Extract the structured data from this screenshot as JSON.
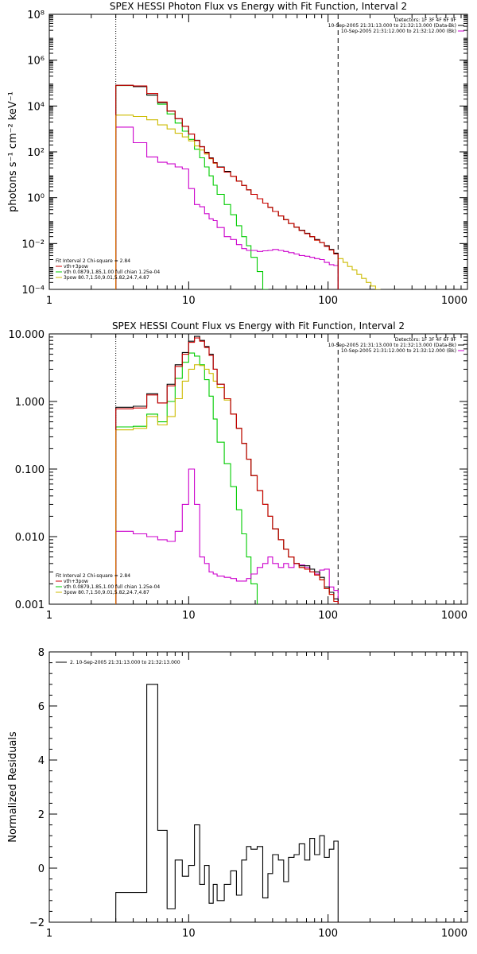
{
  "chart_data": [
    {
      "type": "line",
      "step": true,
      "title": "SPEX HESSI Photon Flux vs Energy with Fit Function, Interval 2",
      "ylabel": "photons s⁻¹ cm⁻² keV⁻¹",
      "xlabel": "",
      "xscale": "log",
      "yscale": "log",
      "xlim": [
        1,
        1000
      ],
      "ylim": [
        0.0001,
        100000000
      ],
      "xticks": [
        1,
        10,
        100,
        1000
      ],
      "xtick_labels": [
        "1",
        "10",
        "100",
        "1000"
      ],
      "yticks": [
        0.0001,
        0.01,
        1,
        100,
        10000,
        1000000,
        100000000
      ],
      "ytick_labels": [
        "10⁻⁴",
        "10⁻²",
        "10⁰",
        "10²",
        "10⁴",
        "10⁶",
        "10⁸"
      ],
      "vlines": [
        {
          "x": 3,
          "style": "dotted"
        },
        {
          "x": 118,
          "style": "dashed"
        }
      ],
      "header_lines": [
        "Detectors: 1F 3F 4F 6F 9F",
        "10-Sep-2005 21:31:13.000 to 21:32:13.000 (Data-Bk)",
        "10-Sep-2005 21:31:12.000 to 21:32:12.000 (Bk)"
      ],
      "legend": [
        "Fit Interval 2   Chi-square = 2.84",
        "vth+3pow",
        "vth 0.0879,1.85,1.00  full chian 1.25e-04",
        "3pow 80.7,1.50,9.01,5.82,24.7,4.87"
      ],
      "edges": [
        3,
        4,
        5,
        6,
        7,
        8,
        9,
        10,
        11,
        12,
        13,
        14,
        15,
        16,
        18,
        20,
        22,
        24,
        26,
        28,
        31,
        34,
        37,
        40,
        44,
        48,
        52,
        57,
        62,
        68,
        74,
        80,
        87,
        94,
        102,
        110,
        118,
        128,
        138,
        149,
        161,
        174,
        188,
        203,
        219,
        236,
        254
      ],
      "series": [
        {
          "name": "Data-Bk",
          "color": "#000000",
          "values": [
            80000,
            70000,
            30000,
            14000,
            6000,
            2800,
            1300,
            600,
            320,
            170,
            95,
            55,
            34,
            22,
            14,
            8.5,
            5.3,
            3.4,
            2.2,
            1.4,
            0.9,
            0.58,
            0.38,
            0.25,
            0.16,
            0.11,
            0.075,
            0.052,
            0.038,
            0.028,
            0.02,
            0.015,
            0.011,
            0.008,
            0.0055,
            0.0038
          ]
        },
        {
          "name": "Bk",
          "color": "#cc00cc",
          "values": [
            1200,
            250,
            60,
            35,
            30,
            22,
            18,
            2.5,
            0.5,
            0.4,
            0.2,
            0.12,
            0.1,
            0.05,
            0.02,
            0.015,
            0.009,
            0.006,
            0.005,
            0.005,
            0.0045,
            0.0048,
            0.005,
            0.0055,
            0.005,
            0.0045,
            0.004,
            0.0035,
            0.003,
            0.0028,
            0.0025,
            0.0022,
            0.002,
            0.0015,
            0.0012,
            0.0011
          ]
        },
        {
          "name": "vth+3pow",
          "color": "#cc0000",
          "values": [
            80000,
            75000,
            35000,
            15000,
            6000,
            2800,
            1300,
            600,
            310,
            165,
            90,
            52,
            33,
            21,
            13,
            8.5,
            5.2,
            3.4,
            2.2,
            1.4,
            0.9,
            0.58,
            0.38,
            0.25,
            0.16,
            0.11,
            0.075,
            0.052,
            0.037,
            0.027,
            0.02,
            0.014,
            0.011,
            0.0075,
            0.0052,
            0.0035
          ]
        },
        {
          "name": "vth",
          "color": "#00cc00",
          "values": [
            78000,
            70000,
            30000,
            12000,
            4500,
            1800,
            800,
            350,
            130,
            55,
            22,
            9,
            3.5,
            1.4,
            0.5,
            0.18,
            0.06,
            0.02,
            0.008,
            0.0025,
            0.0006,
            0.0001
          ]
        },
        {
          "name": "3pow",
          "color": "#ccbb00",
          "values": [
            4000,
            3500,
            2500,
            1500,
            1000,
            650,
            450,
            300,
            180,
            120,
            80,
            50,
            32,
            21,
            13,
            8.5,
            5.3,
            3.4,
            2.2,
            1.4,
            0.9,
            0.58,
            0.38,
            0.25,
            0.16,
            0.11,
            0.075,
            0.052,
            0.037,
            0.027,
            0.02,
            0.014,
            0.011,
            0.0075,
            0.0052,
            0.0035,
            0.0022,
            0.0015,
            0.001,
            0.0007,
            0.00045,
            0.0003,
            0.0002,
            0.00014,
            0.0001,
            7e-05
          ]
        }
      ]
    },
    {
      "type": "line",
      "step": true,
      "title": "SPEX HESSI Count Flux vs Energy with Fit Function, Interval 2",
      "xlabel": "",
      "ylabel": "",
      "xscale": "log",
      "yscale": "log",
      "xlim": [
        1,
        1000
      ],
      "ylim": [
        0.001,
        10
      ],
      "xticks": [
        1,
        10,
        100,
        1000
      ],
      "xtick_labels": [
        "1",
        "10",
        "100",
        "1000"
      ],
      "yticks": [
        0.001,
        0.01,
        0.1,
        1,
        10
      ],
      "ytick_labels": [
        "0.001",
        "0.010",
        "0.100",
        "1.000",
        "10.000"
      ],
      "vlines": [
        {
          "x": 3,
          "style": "dotted"
        },
        {
          "x": 118,
          "style": "dashed"
        }
      ],
      "header_lines": [
        "Detectors: 1F 3F 4F 6F 9F",
        "10-Sep-2005 21:31:13.000 to 21:32:13.000 (Data-Bk)",
        "10-Sep-2005 21:31:12.000 to 21:32:12.000 (Bk)"
      ],
      "legend": [
        "Fit Interval 2   Chi-square = 2.84",
        "vth+3pow",
        "vth 0.0879,1.85,1.00  full chian 1.25e-04",
        "3pow 80.7,1.50,9.01,5.82,24.7,4.87"
      ],
      "edges": [
        3,
        4,
        5,
        6,
        7,
        8,
        9,
        10,
        11,
        12,
        13,
        14,
        15,
        16,
        18,
        20,
        22,
        24,
        26,
        28,
        31,
        34,
        37,
        40,
        44,
        48,
        52,
        57,
        62,
        68,
        74,
        80,
        87,
        94,
        102,
        110,
        118
      ],
      "series": [
        {
          "name": "Data-Bk",
          "color": "#000000",
          "values": [
            0.82,
            0.85,
            1.3,
            0.95,
            1.8,
            3.5,
            5.3,
            7.8,
            9.2,
            8,
            6.5,
            5,
            3,
            1.8,
            1.1,
            0.65,
            0.4,
            0.24,
            0.14,
            0.08,
            0.048,
            0.03,
            0.02,
            0.013,
            0.009,
            0.0065,
            0.005,
            0.004,
            0.0037,
            0.0037,
            0.0033,
            0.003,
            0.0025,
            0.0018,
            0.0015,
            0.0012
          ]
        },
        {
          "name": "Bk",
          "color": "#cc00cc",
          "values": [
            0.012,
            0.011,
            0.01,
            0.009,
            0.0085,
            0.012,
            0.03,
            0.1,
            0.03,
            0.005,
            0.004,
            0.003,
            0.0028,
            0.0026,
            0.0025,
            0.0024,
            0.0022,
            0.0022,
            0.0024,
            0.0028,
            0.0035,
            0.004,
            0.005,
            0.004,
            0.0035,
            0.004,
            0.0035,
            0.004,
            0.0038,
            0.0035,
            0.003,
            0.0028,
            0.0032,
            0.0033,
            0.0018,
            0.0016
          ]
        },
        {
          "name": "vth+3pow",
          "color": "#cc0000",
          "values": [
            0.78,
            0.8,
            1.25,
            0.95,
            1.7,
            3.3,
            5,
            7.5,
            8.7,
            7.8,
            6.3,
            4.8,
            3,
            1.8,
            1.1,
            0.65,
            0.4,
            0.24,
            0.14,
            0.08,
            0.048,
            0.03,
            0.02,
            0.013,
            0.009,
            0.0065,
            0.005,
            0.004,
            0.0035,
            0.0033,
            0.003,
            0.0027,
            0.0023,
            0.0017,
            0.0014,
            0.0011
          ]
        },
        {
          "name": "vth",
          "color": "#00cc00",
          "values": [
            0.42,
            0.43,
            0.65,
            0.5,
            1,
            2.2,
            3.8,
            5.2,
            4.7,
            3.5,
            2.1,
            1.2,
            0.55,
            0.25,
            0.12,
            0.055,
            0.025,
            0.011,
            0.005,
            0.002,
            0.0008
          ]
        },
        {
          "name": "3pow",
          "color": "#ccbb00",
          "values": [
            0.38,
            0.4,
            0.6,
            0.45,
            0.6,
            1.1,
            2,
            3,
            3.5,
            3.4,
            3,
            2.6,
            2,
            1.6,
            1.05,
            0.65,
            0.4,
            0.24,
            0.14,
            0.08,
            0.048,
            0.03,
            0.02,
            0.013,
            0.009,
            0.0065,
            0.005,
            0.004,
            0.0035,
            0.0033,
            0.003,
            0.0027,
            0.0023,
            0.0017,
            0.0014,
            0.0011
          ]
        }
      ]
    },
    {
      "type": "line",
      "step": true,
      "title": "",
      "xlabel": "",
      "ylabel": "Normalized Residuals",
      "xscale": "log",
      "yscale": "linear",
      "xlim": [
        1,
        1000
      ],
      "ylim": [
        -2,
        8
      ],
      "xticks": [
        1,
        10,
        100,
        1000
      ],
      "xtick_labels": [
        "1",
        "10",
        "100",
        "1000"
      ],
      "yticks": [
        -2,
        0,
        2,
        4,
        6,
        8
      ],
      "ytick_labels": [
        "−2",
        "0",
        "2",
        "4",
        "6",
        "8"
      ],
      "legend": [
        "2. 10-Sep-2005 21:31:13.000 to 21:32:13.000"
      ],
      "edges": [
        3,
        4,
        5,
        6,
        7,
        8,
        9,
        10,
        11,
        12,
        13,
        14,
        15,
        16,
        18,
        20,
        22,
        24,
        26,
        28,
        31,
        34,
        37,
        40,
        44,
        48,
        52,
        57,
        62,
        68,
        74,
        80,
        87,
        94,
        102,
        110,
        118
      ],
      "series": [
        {
          "name": "",
          "color": "#000000",
          "values": [
            -0.9,
            -0.9,
            6.8,
            1.4,
            -1.5,
            0.3,
            -0.3,
            0.1,
            1.6,
            -0.6,
            0.1,
            -1.3,
            -0.6,
            -1.2,
            -0.6,
            -0.1,
            -1.0,
            0.3,
            0.8,
            0.7,
            0.8,
            -1.1,
            -0.2,
            0.5,
            0.3,
            -0.5,
            0.4,
            0.5,
            0.9,
            0.3,
            1.1,
            0.5,
            1.2,
            0.4,
            0.7,
            1.0
          ]
        }
      ]
    }
  ]
}
